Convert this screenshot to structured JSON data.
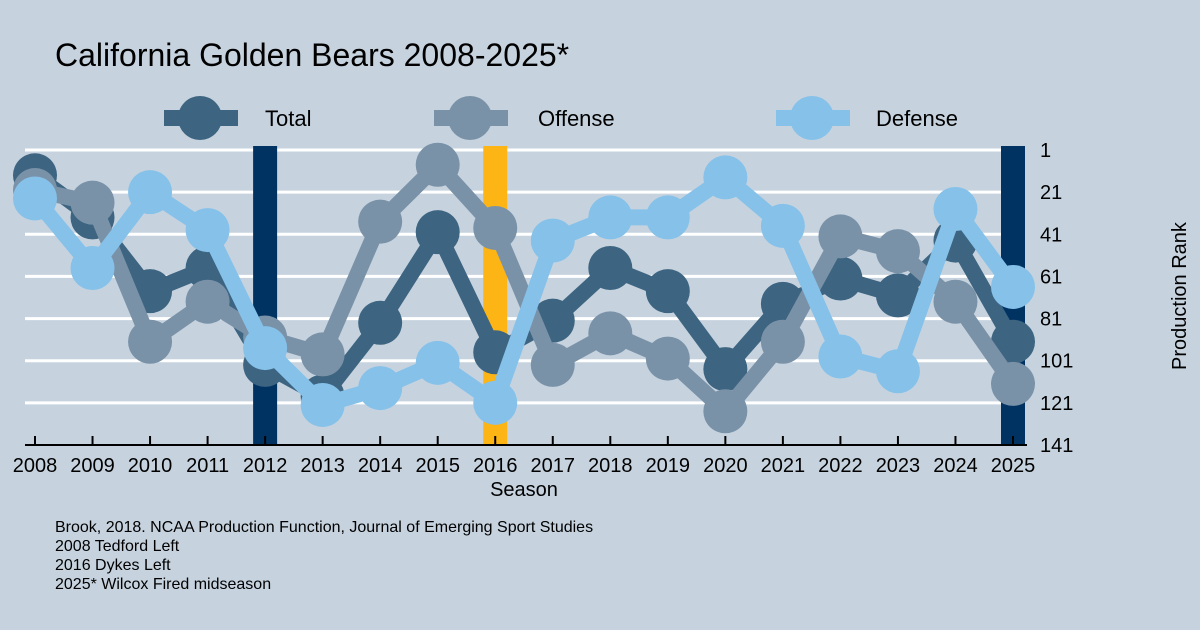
{
  "chart_data": {
    "type": "line",
    "title": "California Golden Bears 2008-2025*",
    "xlabel": "Season",
    "ylabel": "Production Rank",
    "x": [
      2008,
      2009,
      2010,
      2011,
      2012,
      2013,
      2014,
      2015,
      2016,
      2017,
      2018,
      2019,
      2020,
      2021,
      2022,
      2023,
      2024,
      2025
    ],
    "x_tick_labels": [
      "2008",
      "2009",
      "2010",
      "2011",
      "2012",
      "2013",
      "2014",
      "2015",
      "2016",
      "2017",
      "2018",
      "2019",
      "2020",
      "2021",
      "2022",
      "2023",
      "2024",
      "2025"
    ],
    "y_ticks": [
      1,
      21,
      41,
      61,
      81,
      101,
      121,
      141
    ],
    "ylim": [
      141,
      1
    ],
    "y_inverted": true,
    "grid": true,
    "legend_position": "top",
    "series": [
      {
        "name": "Total",
        "color": "#3d6480",
        "values": [
          13,
          33,
          68,
          57,
          103,
          118,
          83,
          40,
          97,
          82,
          57,
          68,
          105,
          74,
          62,
          70,
          44,
          92
        ]
      },
      {
        "name": "Offense",
        "color": "#7a92a8",
        "values": [
          20,
          26,
          92,
          73,
          90,
          98,
          35,
          8,
          38,
          103,
          88,
          100,
          125,
          92,
          42,
          49,
          73,
          112
        ]
      },
      {
        "name": "Defense",
        "color": "#85c1e9",
        "values": [
          24,
          57,
          21,
          39,
          95,
          122,
          114,
          102,
          121,
          44,
          33,
          33,
          14,
          37,
          99,
          106,
          29,
          66
        ]
      }
    ],
    "highlight_bars": [
      {
        "x": 2012,
        "color": "#003262"
      },
      {
        "x": 2016,
        "color": "#fdb515"
      },
      {
        "x": 2025,
        "color": "#003262"
      }
    ],
    "notes": [
      "Brook, 2018. NCAA Production Function, Journal of Emerging Sport Studies",
      "2008 Tedford Left",
      "2016 Dykes Left",
      "2025* Wilcox Fired midseason"
    ]
  }
}
